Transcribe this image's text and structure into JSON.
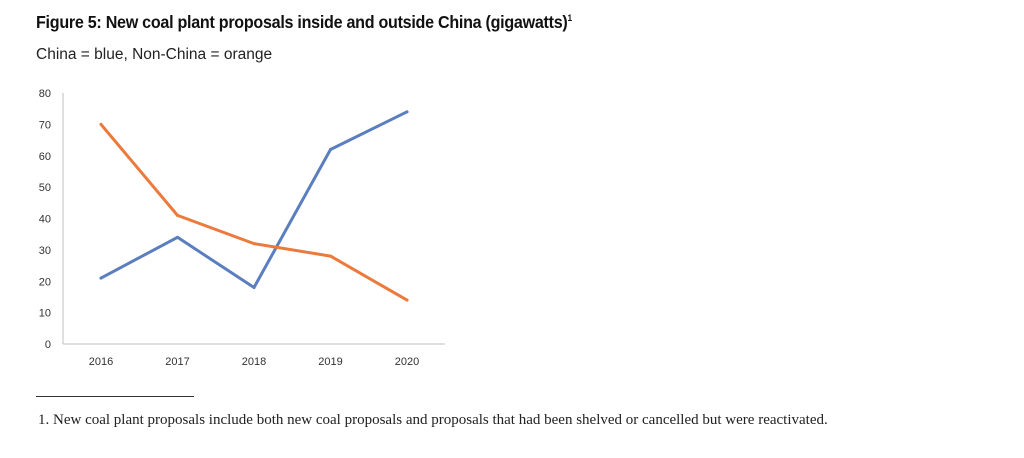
{
  "figure": {
    "title": "Figure 5: New coal plant proposals inside and outside China (gigawatts)",
    "title_marker": "1",
    "subtitle": "China = blue, Non-China = orange"
  },
  "colors": {
    "china": "#5b7ebf",
    "non_china": "#ec7a3c",
    "axis": "#bfbfbf"
  },
  "chart_data": {
    "type": "line",
    "title": "New coal plant proposals inside and outside China (gigawatts)",
    "categories": [
      "2016",
      "2017",
      "2018",
      "2019",
      "2020"
    ],
    "series": [
      {
        "name": "China",
        "color": "#5b7ebf",
        "values": [
          21,
          34,
          18,
          62,
          74
        ]
      },
      {
        "name": "Non-China",
        "color": "#ec7a3c",
        "values": [
          70,
          41,
          32,
          28,
          14
        ]
      }
    ],
    "ylim": [
      0,
      80
    ],
    "yticks": [
      0,
      10,
      20,
      30,
      40,
      50,
      60,
      70,
      80
    ],
    "xlabel": "",
    "ylabel": "",
    "grid": false,
    "legend": "none"
  },
  "footnote": {
    "text": "1.  New coal plant proposals include both new coal proposals and proposals that had been shelved or cancelled but were reactivated."
  }
}
